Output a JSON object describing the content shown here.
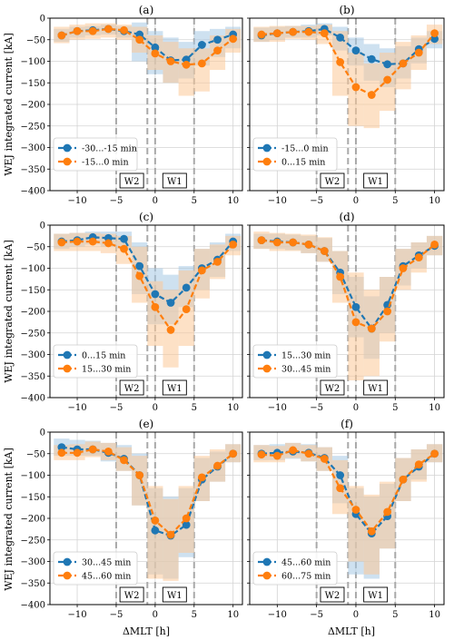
{
  "figure": {
    "ylabel": "WEJ integrated current [kA]",
    "xlabel": "ΔMLT [h]",
    "region_labels": [
      "W2",
      "W1"
    ]
  },
  "colors": {
    "series1": "#1f77b4",
    "series2": "#ff7f0e",
    "band1": "#a6c8e3",
    "band2": "#fbc898",
    "dash": "#a9a9a9",
    "grid": "#d3d3d3"
  },
  "chart_data": [
    {
      "type": "line",
      "title": "(a)",
      "xlim": [
        -13.5,
        11.2
      ],
      "ylim": [
        -400,
        0
      ],
      "xticks": [
        -10,
        -5,
        0,
        5,
        10
      ],
      "yticks": [
        0,
        -50,
        -100,
        -150,
        -200,
        -250,
        -300,
        -350,
        -400
      ],
      "vlines": [
        -5,
        -1,
        0,
        5
      ],
      "x": [
        -12,
        -10,
        -8,
        -6,
        -4,
        -2,
        0,
        2,
        4,
        6,
        8,
        10
      ],
      "legend_position": "lower-left",
      "series": [
        {
          "name": "-30...-15 min",
          "values": [
            -40,
            -30,
            -28,
            -25,
            -30,
            -38,
            -68,
            -98,
            -96,
            -62,
            -50,
            -38
          ],
          "band": [
            [
              -55,
              -25
            ],
            [
              -45,
              -20
            ],
            [
              -40,
              -18
            ],
            [
              -38,
              -15
            ],
            [
              -45,
              -18
            ],
            [
              -100,
              -10
            ],
            [
              -130,
              -30
            ],
            [
              -150,
              -45
            ],
            [
              -140,
              -55
            ],
            [
              -110,
              -30
            ],
            [
              -90,
              -25
            ],
            [
              -70,
              -20
            ]
          ]
        },
        {
          "name": "-15...0 min",
          "values": [
            -40,
            -30,
            -30,
            -25,
            -28,
            -50,
            -82,
            -100,
            -108,
            -105,
            -75,
            -48
          ],
          "band": [
            [
              -58,
              -20
            ],
            [
              -50,
              -15
            ],
            [
              -48,
              -12
            ],
            [
              -45,
              -12
            ],
            [
              -50,
              -15
            ],
            [
              -80,
              -20
            ],
            [
              -120,
              -40
            ],
            [
              -150,
              -55
            ],
            [
              -180,
              -70
            ],
            [
              -170,
              -70
            ],
            [
              -120,
              -40
            ],
            [
              -80,
              -25
            ]
          ]
        }
      ]
    },
    {
      "type": "line",
      "title": "(b)",
      "xlim": [
        -13.5,
        11.2
      ],
      "ylim": [
        -400,
        0
      ],
      "xticks": [
        -10,
        -5,
        0,
        5,
        10
      ],
      "yticks": [
        0,
        -50,
        -100,
        -150,
        -200,
        -250,
        -300,
        -350,
        -400
      ],
      "vlines": [
        -5,
        -1,
        0,
        5
      ],
      "x": [
        -12,
        -10,
        -8,
        -6,
        -4,
        -2,
        0,
        2,
        4,
        6,
        8,
        10
      ],
      "legend_position": "lower-left",
      "series": [
        {
          "name": "-15...0 min",
          "values": [
            -40,
            -35,
            -32,
            -30,
            -25,
            -45,
            -75,
            -95,
            -107,
            -105,
            -72,
            -48
          ],
          "band": [
            [
              -55,
              -22
            ],
            [
              -50,
              -20
            ],
            [
              -45,
              -18
            ],
            [
              -45,
              -15
            ],
            [
              -40,
              -12
            ],
            [
              -75,
              -20
            ],
            [
              -110,
              -45
            ],
            [
              -145,
              -60
            ],
            [
              -160,
              -70
            ],
            [
              -140,
              -65
            ],
            [
              -105,
              -45
            ],
            [
              -70,
              -30
            ]
          ]
        },
        {
          "name": "0...15 min",
          "values": [
            -38,
            -35,
            -32,
            -32,
            -35,
            -102,
            -160,
            -178,
            -143,
            -105,
            -80,
            -35
          ],
          "band": [
            [
              -55,
              -20
            ],
            [
              -55,
              -18
            ],
            [
              -48,
              -18
            ],
            [
              -50,
              -18
            ],
            [
              -60,
              -15
            ],
            [
              -180,
              -30
            ],
            [
              -250,
              -80
            ],
            [
              -255,
              -105
            ],
            [
              -215,
              -80
            ],
            [
              -165,
              -55
            ],
            [
              -120,
              -40
            ],
            [
              -60,
              -15
            ]
          ]
        }
      ]
    },
    {
      "type": "line",
      "title": "(c)",
      "xlim": [
        -13.5,
        11.2
      ],
      "ylim": [
        -400,
        0
      ],
      "xticks": [
        -10,
        -5,
        0,
        5,
        10
      ],
      "yticks": [
        0,
        -50,
        -100,
        -150,
        -200,
        -250,
        -300,
        -350,
        -400
      ],
      "vlines": [
        -5,
        -1,
        0,
        5
      ],
      "x": [
        -12,
        -10,
        -8,
        -6,
        -4,
        -2,
        0,
        2,
        4,
        6,
        8,
        10
      ],
      "legend_position": "lower-left",
      "series": [
        {
          "name": "0...15 min",
          "values": [
            -38,
            -35,
            -28,
            -30,
            -32,
            -95,
            -160,
            -180,
            -145,
            -100,
            -80,
            -38
          ],
          "band": [
            [
              -55,
              -20
            ],
            [
              -50,
              -18
            ],
            [
              -45,
              -15
            ],
            [
              -50,
              -15
            ],
            [
              -55,
              -15
            ],
            [
              -160,
              -40
            ],
            [
              -230,
              -100
            ],
            [
              -230,
              -115
            ],
            [
              -190,
              -95
            ],
            [
              -150,
              -55
            ],
            [
              -120,
              -40
            ],
            [
              -60,
              -20
            ]
          ]
        },
        {
          "name": "15...30 min",
          "values": [
            -40,
            -38,
            -38,
            -42,
            -55,
            -118,
            -190,
            -243,
            -195,
            -105,
            -85,
            -45
          ],
          "band": [
            [
              -60,
              -20
            ],
            [
              -60,
              -18
            ],
            [
              -60,
              -18
            ],
            [
              -65,
              -20
            ],
            [
              -90,
              -25
            ],
            [
              -180,
              -50
            ],
            [
              -280,
              -130
            ],
            [
              -330,
              -150
            ],
            [
              -280,
              -105
            ],
            [
              -170,
              -55
            ],
            [
              -125,
              -45
            ],
            [
              -70,
              -25
            ]
          ]
        }
      ]
    },
    {
      "type": "line",
      "title": "(d)",
      "xlim": [
        -13.5,
        11.2
      ],
      "ylim": [
        -400,
        0
      ],
      "xticks": [
        -10,
        -5,
        0,
        5,
        10
      ],
      "yticks": [
        0,
        -50,
        -100,
        -150,
        -200,
        -250,
        -300,
        -350,
        -400
      ],
      "vlines": [
        -5,
        -1,
        0,
        5
      ],
      "x": [
        -12,
        -10,
        -8,
        -6,
        -4,
        -2,
        0,
        2,
        4,
        6,
        8,
        10
      ],
      "legend_position": "lower-left",
      "series": [
        {
          "name": "15...30 min",
          "values": [
            -35,
            -38,
            -40,
            -45,
            -60,
            -110,
            -190,
            -240,
            -185,
            -95,
            -70,
            -48
          ],
          "band": [
            [
              -55,
              -20
            ],
            [
              -55,
              -20
            ],
            [
              -58,
              -22
            ],
            [
              -65,
              -25
            ],
            [
              -85,
              -30
            ],
            [
              -160,
              -60
            ],
            [
              -260,
              -120
            ],
            [
              -310,
              -165
            ],
            [
              -250,
              -120
            ],
            [
              -140,
              -55
            ],
            [
              -100,
              -40
            ],
            [
              -70,
              -25
            ]
          ]
        },
        {
          "name": "30...45 min",
          "values": [
            -35,
            -40,
            -40,
            -45,
            -60,
            -120,
            -225,
            -240,
            -200,
            -100,
            -75,
            -45
          ],
          "band": [
            [
              -55,
              -15
            ],
            [
              -60,
              -18
            ],
            [
              -60,
              -20
            ],
            [
              -65,
              -22
            ],
            [
              -85,
              -28
            ],
            [
              -180,
              -60
            ],
            [
              -360,
              -110
            ],
            [
              -350,
              -150
            ],
            [
              -270,
              -120
            ],
            [
              -150,
              -55
            ],
            [
              -110,
              -40
            ],
            [
              -70,
              -25
            ]
          ]
        }
      ]
    },
    {
      "type": "line",
      "title": "(e)",
      "xlim": [
        -13.5,
        11.2
      ],
      "ylim": [
        -400,
        0
      ],
      "xticks": [
        -10,
        -5,
        0,
        5,
        10
      ],
      "yticks": [
        0,
        -50,
        -100,
        -150,
        -200,
        -250,
        -300,
        -350,
        -400
      ],
      "vlines": [
        -5,
        -1,
        0,
        5
      ],
      "x": [
        -12,
        -10,
        -8,
        -6,
        -4,
        -2,
        0,
        2,
        4,
        6,
        8,
        10
      ],
      "legend_position": "lower-left",
      "series": [
        {
          "name": "30...45 min",
          "values": [
            -35,
            -40,
            -40,
            -48,
            -62,
            -100,
            -228,
            -240,
            -215,
            -110,
            -80,
            -50
          ],
          "band": [
            [
              -55,
              -15
            ],
            [
              -55,
              -18
            ],
            [
              -55,
              -20
            ],
            [
              -68,
              -25
            ],
            [
              -90,
              -30
            ],
            [
              -170,
              -50
            ],
            [
              -330,
              -130
            ],
            [
              -340,
              -150
            ],
            [
              -290,
              -130
            ],
            [
              -160,
              -60
            ],
            [
              -115,
              -45
            ],
            [
              -70,
              -28
            ]
          ]
        },
        {
          "name": "45...60 min",
          "values": [
            -48,
            -48,
            -40,
            -45,
            -65,
            -100,
            -205,
            -238,
            -200,
            -105,
            -78,
            -50
          ],
          "band": [
            [
              -65,
              -30
            ],
            [
              -65,
              -28
            ],
            [
              -58,
              -22
            ],
            [
              -65,
              -25
            ],
            [
              -90,
              -35
            ],
            [
              -170,
              -55
            ],
            [
              -340,
              -125
            ],
            [
              -345,
              -155
            ],
            [
              -280,
              -125
            ],
            [
              -160,
              -55
            ],
            [
              -115,
              -40
            ],
            [
              -70,
              -28
            ]
          ]
        }
      ]
    },
    {
      "type": "line",
      "title": "(f)",
      "xlim": [
        -13.5,
        11.2
      ],
      "ylim": [
        -400,
        0
      ],
      "xticks": [
        -10,
        -5,
        0,
        5,
        10
      ],
      "yticks": [
        0,
        -50,
        -100,
        -150,
        -200,
        -250,
        -300,
        -350,
        -400
      ],
      "vlines": [
        -5,
        -1,
        0,
        5
      ],
      "x": [
        -12,
        -10,
        -8,
        -6,
        -4,
        -2,
        0,
        2,
        4,
        6,
        8,
        10
      ],
      "legend_position": "lower-left",
      "series": [
        {
          "name": "45...60 min",
          "values": [
            -50,
            -48,
            -45,
            -48,
            -60,
            -100,
            -190,
            -235,
            -195,
            -110,
            -80,
            -50
          ],
          "band": [
            [
              -65,
              -30
            ],
            [
              -65,
              -28
            ],
            [
              -62,
              -25
            ],
            [
              -68,
              -28
            ],
            [
              -90,
              -35
            ],
            [
              -165,
              -55
            ],
            [
              -330,
              -130
            ],
            [
              -340,
              -150
            ],
            [
              -270,
              -120
            ],
            [
              -160,
              -60
            ],
            [
              -110,
              -40
            ],
            [
              -70,
              -28
            ]
          ]
        },
        {
          "name": "60...75 min",
          "values": [
            -52,
            -55,
            -42,
            -50,
            -62,
            -130,
            -180,
            -230,
            -185,
            -110,
            -75,
            -50
          ],
          "band": [
            [
              -70,
              -30
            ],
            [
              -70,
              -32
            ],
            [
              -60,
              -25
            ],
            [
              -68,
              -30
            ],
            [
              -90,
              -35
            ],
            [
              -190,
              -65
            ],
            [
              -300,
              -125
            ],
            [
              -330,
              -145
            ],
            [
              -270,
              -115
            ],
            [
              -160,
              -60
            ],
            [
              -115,
              -40
            ],
            [
              -70,
              -28
            ]
          ]
        }
      ]
    }
  ]
}
